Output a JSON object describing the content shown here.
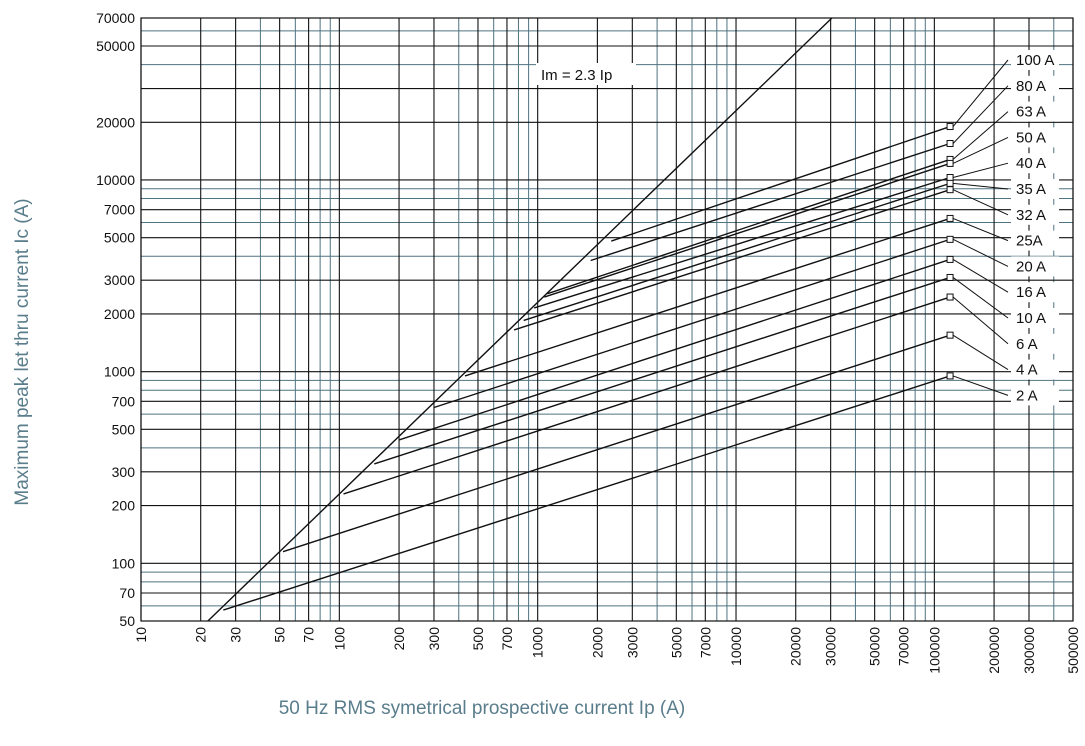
{
  "chart_data": {
    "type": "line",
    "title": "",
    "xlabel": "50 Hz RMS symetrical prospective current Ip (A)",
    "ylabel": "Maximum peak let thru current Ic (A)",
    "x_scale": "log",
    "y_scale": "log",
    "xlim": [
      10,
      500000
    ],
    "ylim": [
      50,
      70000
    ],
    "grid": true,
    "x_ticks": [
      "10",
      "20",
      "30",
      "50",
      "70",
      "100",
      "200",
      "300",
      "500",
      "700",
      "1000",
      "2000",
      "3000",
      "5000",
      "7000",
      "10000",
      "20000",
      "30000",
      "50000",
      "70000",
      "100000",
      "200000",
      "300000",
      "500000"
    ],
    "y_ticks": [
      "50",
      "70",
      "100",
      "200",
      "300",
      "500",
      "700",
      "1000",
      "2000",
      "3000",
      "5000",
      "7000",
      "10000",
      "20000",
      "50000",
      "70000"
    ],
    "reference_line": {
      "label": "Im = 2.3 Ip",
      "factor": 2.3
    },
    "series": [
      {
        "name": "100 A",
        "points": [
          [
            2350,
            4800
          ],
          [
            120000,
            19000
          ]
        ]
      },
      {
        "name": "80 A",
        "points": [
          [
            1850,
            3800
          ],
          [
            120000,
            15500
          ]
        ]
      },
      {
        "name": "63 A",
        "points": [
          [
            1120,
            2550
          ],
          [
            120000,
            12800
          ]
        ]
      },
      {
        "name": "50 A",
        "points": [
          [
            1080,
            2450
          ],
          [
            120000,
            12200
          ]
        ]
      },
      {
        "name": "40 A",
        "points": [
          [
            960,
            2150
          ],
          [
            120000,
            10300
          ]
        ]
      },
      {
        "name": "35 A",
        "points": [
          [
            850,
            1850
          ],
          [
            120000,
            9600
          ]
        ]
      },
      {
        "name": "32 A",
        "points": [
          [
            760,
            1650
          ],
          [
            120000,
            8900
          ]
        ]
      },
      {
        "name": "25A",
        "points": [
          [
            430,
            950
          ],
          [
            120000,
            6300
          ]
        ]
      },
      {
        "name": "20 A",
        "points": [
          [
            300,
            650
          ],
          [
            120000,
            4900
          ]
        ]
      },
      {
        "name": "16 A",
        "points": [
          [
            200,
            440
          ],
          [
            120000,
            3850
          ]
        ]
      },
      {
        "name": "10 A",
        "points": [
          [
            150,
            330
          ],
          [
            120000,
            3100
          ]
        ]
      },
      {
        "name": "6 A",
        "points": [
          [
            105,
            230
          ],
          [
            120000,
            2450
          ]
        ]
      },
      {
        "name": "4 A",
        "points": [
          [
            52,
            115
          ],
          [
            120000,
            1550
          ]
        ]
      },
      {
        "name": "2 A",
        "points": [
          [
            26,
            57
          ],
          [
            120000,
            950
          ]
        ]
      }
    ],
    "curve_label_positions": "right-side column"
  }
}
